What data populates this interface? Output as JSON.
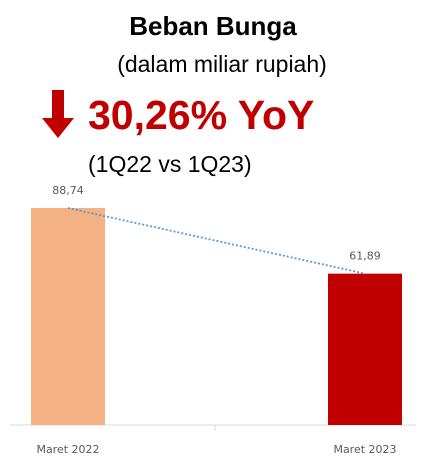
{
  "chart_data": {
    "type": "bar",
    "title": "Beban Bunga",
    "subtitle": "(dalam miliar rupiah)",
    "annotation": "30,26% YoY",
    "comparison": "(1Q22 vs 1Q23)",
    "categories": [
      "Maret 2022",
      "Maret 2023"
    ],
    "values": [
      88.74,
      61.89
    ],
    "value_labels": [
      "88,74",
      "61,89"
    ],
    "colors": [
      "#f4b183",
      "#c00000"
    ],
    "trend_color": "#5b9bd5"
  }
}
